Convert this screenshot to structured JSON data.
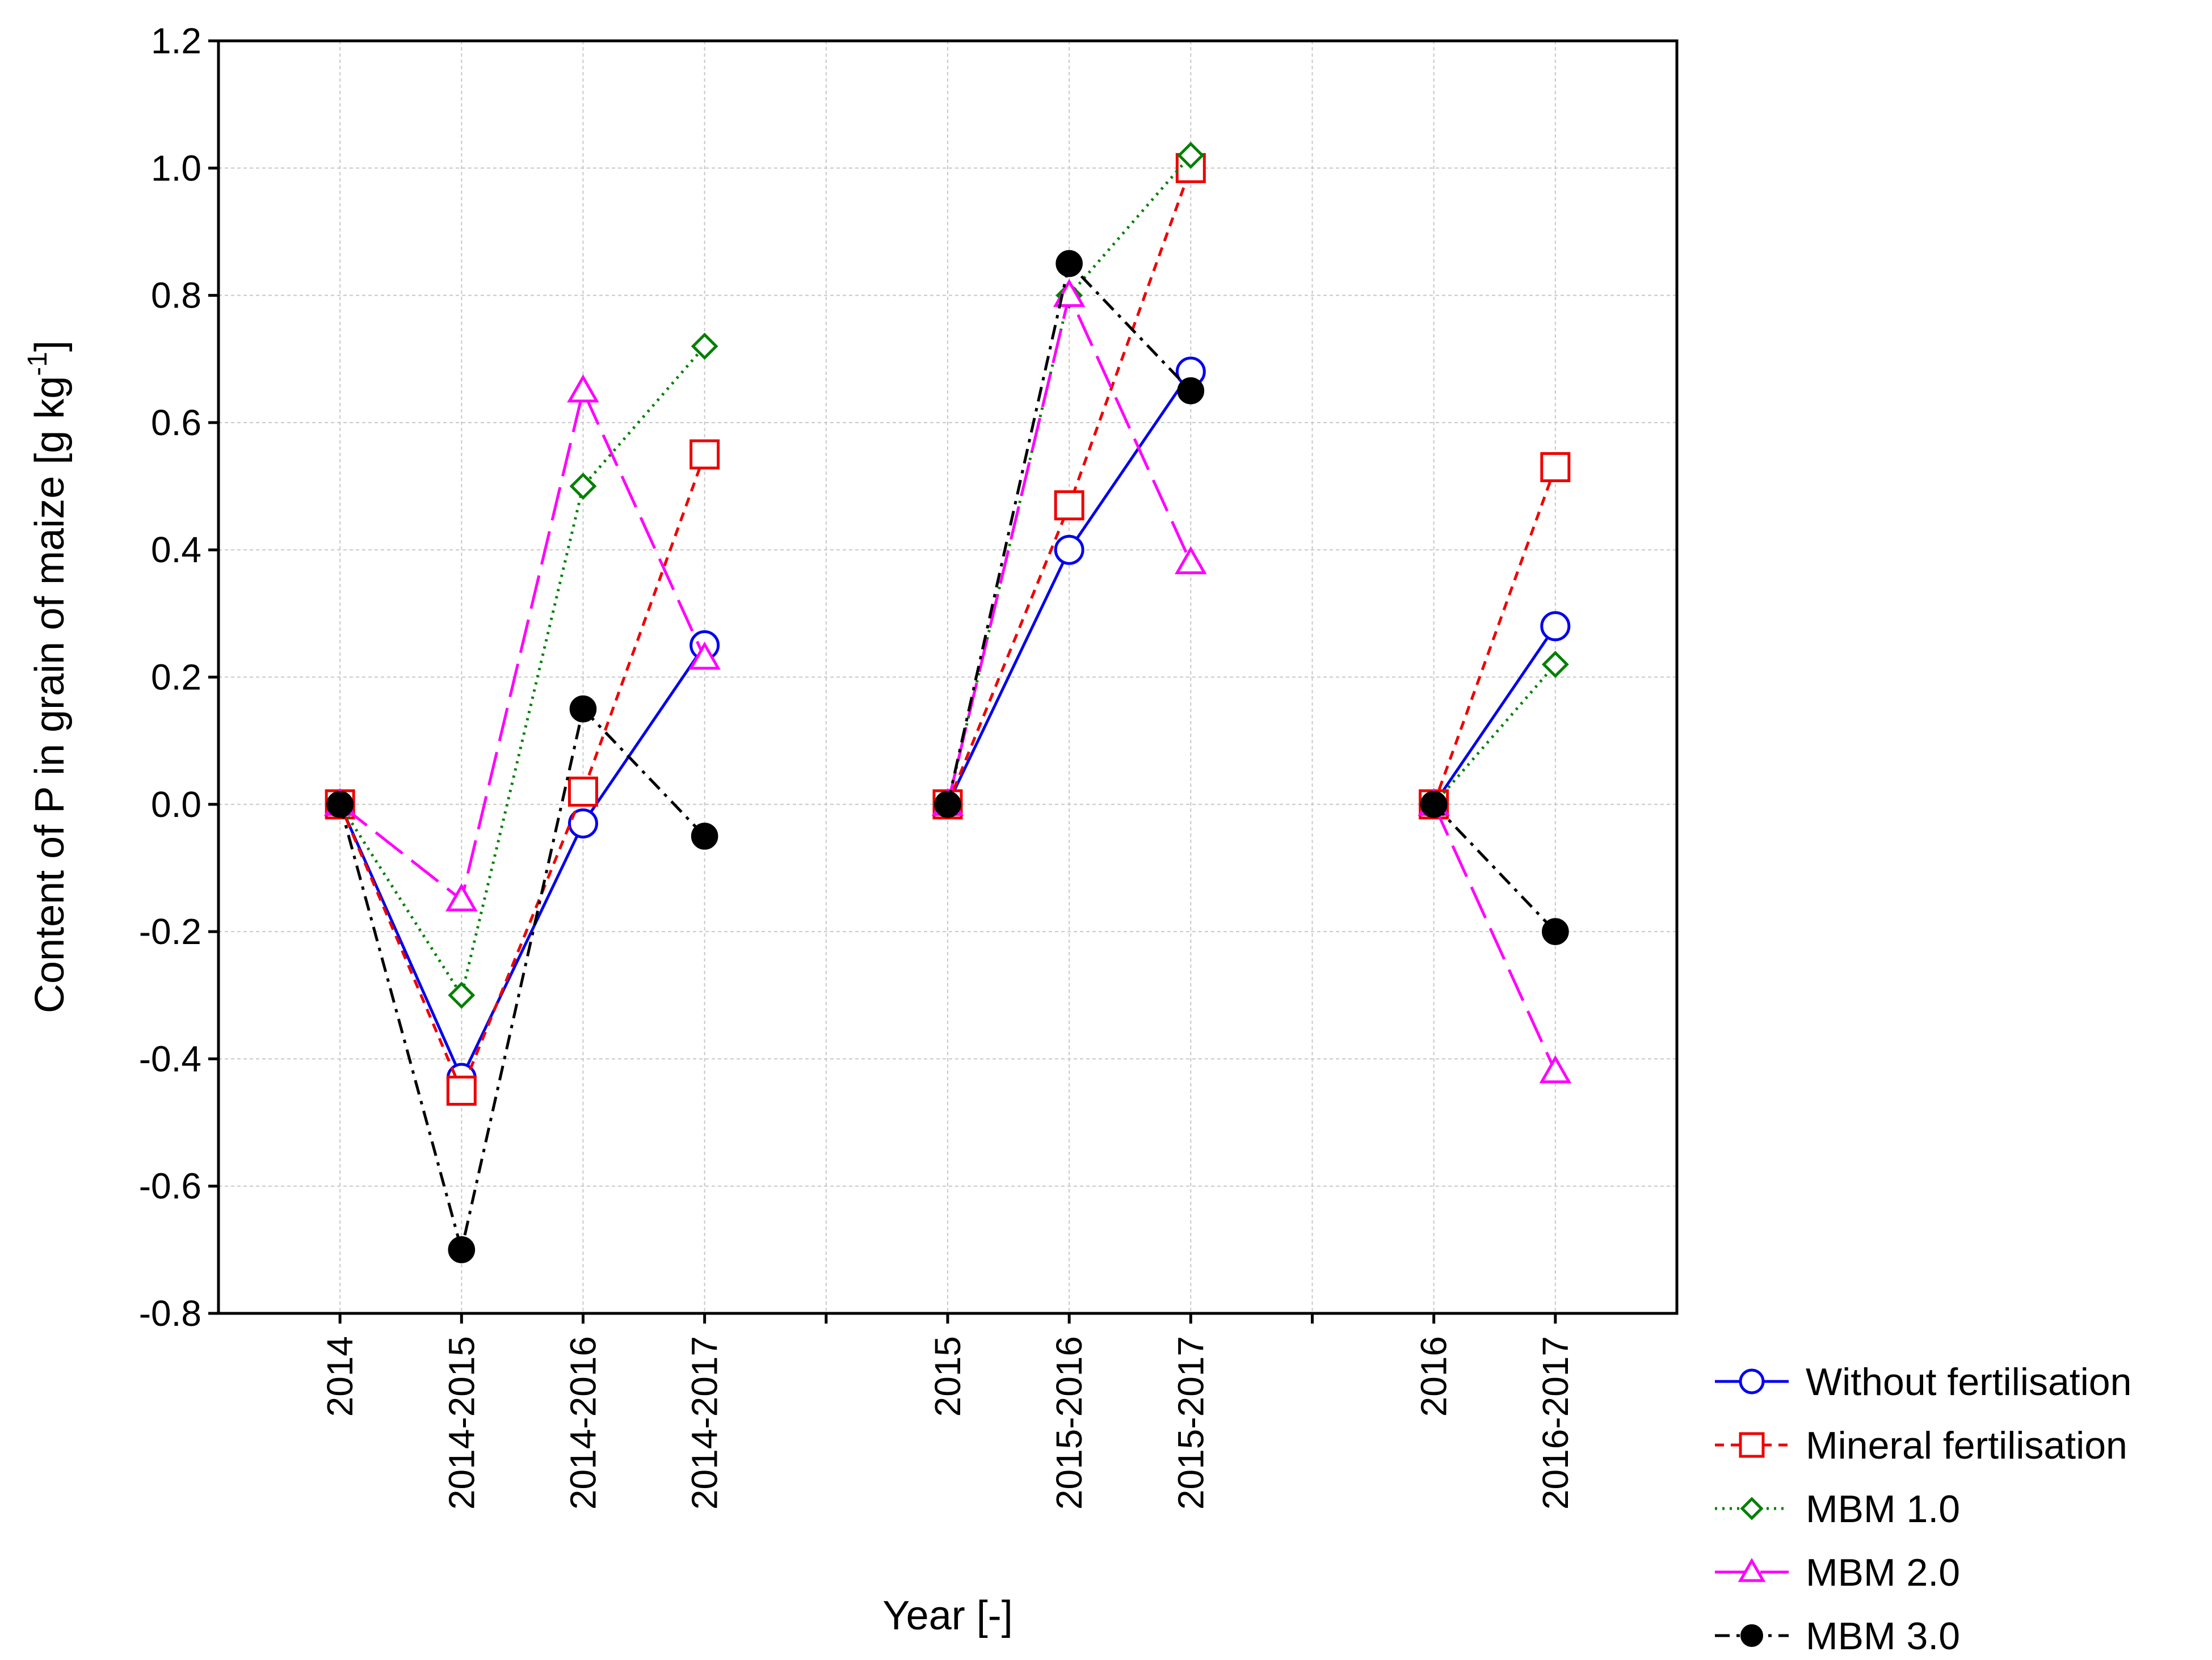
{
  "chart_data": {
    "type": "line",
    "title": "",
    "xlabel": "Year [-]",
    "ylabel_main": "Content of P in grain of maize [g kg",
    "ylabel_sup": "-1",
    "ylabel_end": "]",
    "ylim": [
      -0.8,
      1.2
    ],
    "yticks": [
      -0.8,
      -0.6,
      -0.4,
      -0.2,
      0.0,
      0.2,
      0.4,
      0.6,
      0.8,
      1.0,
      1.2
    ],
    "ytick_labels": [
      "-0.8",
      "-0.6",
      "-0.4",
      "-0.2",
      "0.0",
      "0.2",
      "0.4",
      "0.6",
      "0.8",
      "1.0",
      "1.2"
    ],
    "x_slots": 12,
    "categories": [
      {
        "label": "2014",
        "slot": 1
      },
      {
        "label": "2014-2015",
        "slot": 2
      },
      {
        "label": "2014-2016",
        "slot": 3
      },
      {
        "label": "2014-2017",
        "slot": 4
      },
      {
        "label": "2015",
        "slot": 6
      },
      {
        "label": "2015-2016",
        "slot": 7
      },
      {
        "label": "2015-2017",
        "slot": 8
      },
      {
        "label": "2016",
        "slot": 10
      },
      {
        "label": "2016-2017",
        "slot": 11
      }
    ],
    "groups": [
      [
        0,
        1,
        2,
        3
      ],
      [
        4,
        5,
        6
      ],
      [
        7,
        8
      ]
    ],
    "grid": true,
    "legend_position": "bottom-right outside",
    "series": [
      {
        "name": "Without fertilisation",
        "color": "#0000ee",
        "marker": "circle",
        "line": "solid",
        "values": [
          0.0,
          -0.43,
          -0.03,
          0.25,
          0.0,
          0.4,
          0.68,
          0.0,
          0.28
        ]
      },
      {
        "name": "Mineral fertilisation",
        "color": "#ee0000",
        "marker": "square",
        "line": "dashed",
        "values": [
          0.0,
          -0.45,
          0.02,
          0.55,
          0.0,
          0.47,
          1.0,
          0.0,
          0.53
        ]
      },
      {
        "name": "MBM 1.0",
        "color": "#008000",
        "marker": "diamond",
        "line": "dotted",
        "values": [
          0.0,
          -0.3,
          0.5,
          0.72,
          0.0,
          0.8,
          1.02,
          0.0,
          0.22
        ]
      },
      {
        "name": "MBM 2.0",
        "color": "#ff00ff",
        "marker": "triangle",
        "line": "longdash",
        "values": [
          0.0,
          -0.15,
          0.65,
          0.23,
          0.0,
          0.8,
          0.38,
          0.0,
          -0.42
        ]
      },
      {
        "name": "MBM 3.0",
        "color": "#000000",
        "marker": "filled-circle",
        "line": "dashdot",
        "values": [
          0.0,
          -0.7,
          0.15,
          -0.05,
          0.0,
          0.85,
          0.65,
          0.0,
          -0.2
        ]
      }
    ]
  }
}
